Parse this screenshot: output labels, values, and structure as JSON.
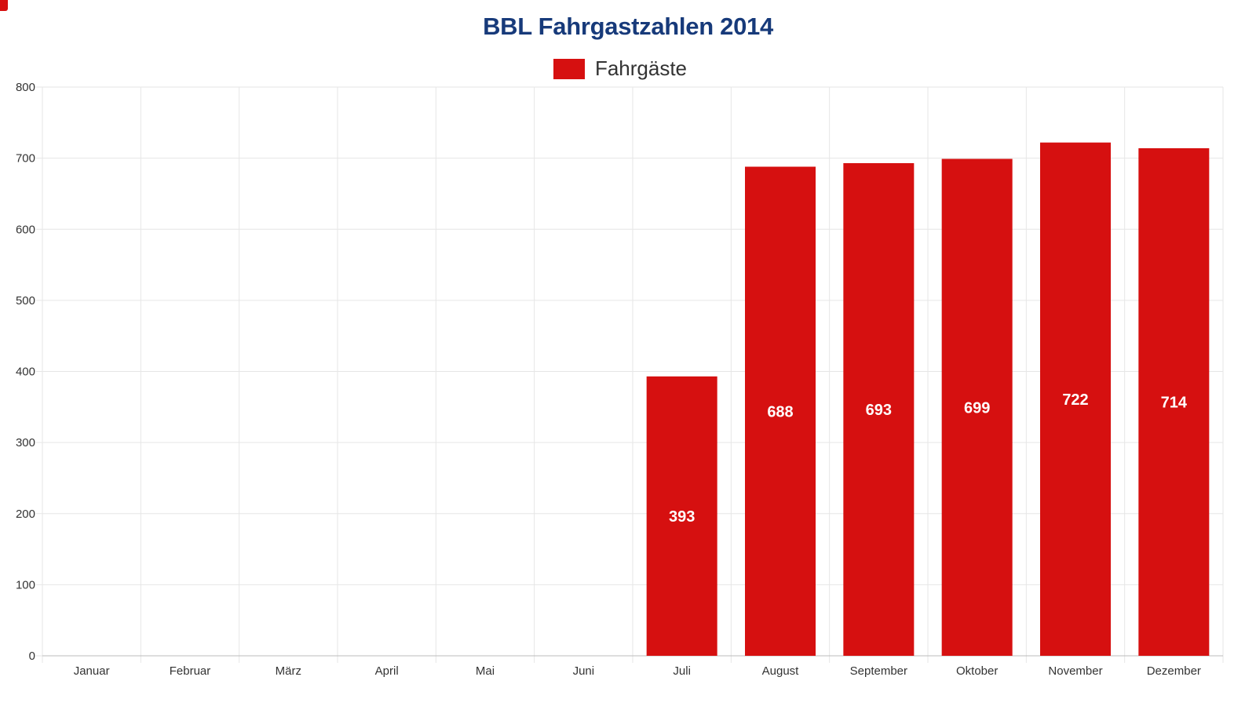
{
  "chart_data": {
    "type": "bar",
    "title": "BBL Fahrgastzahlen 2014",
    "xlabel": "",
    "ylabel": "",
    "categories": [
      "Januar",
      "Februar",
      "März",
      "April",
      "Mai",
      "Juni",
      "Juli",
      "August",
      "September",
      "Oktober",
      "November",
      "Dezember"
    ],
    "series": [
      {
        "name": "Fahrgäste",
        "values": [
          null,
          null,
          null,
          null,
          null,
          null,
          393,
          688,
          693,
          699,
          722,
          714
        ],
        "color": "#d61010"
      }
    ],
    "ylim": [
      0,
      800
    ],
    "yticks": [
      0,
      100,
      200,
      300,
      400,
      500,
      600,
      700,
      800
    ],
    "grid": true,
    "legend_position": "top-center",
    "data_labels": true
  },
  "colors": {
    "title": "#173a7a",
    "bar": "#d61010",
    "grid": "#e6e6e6",
    "axis": "#bbbbbb",
    "tick_text": "#333333",
    "data_label": "#ffffff"
  }
}
